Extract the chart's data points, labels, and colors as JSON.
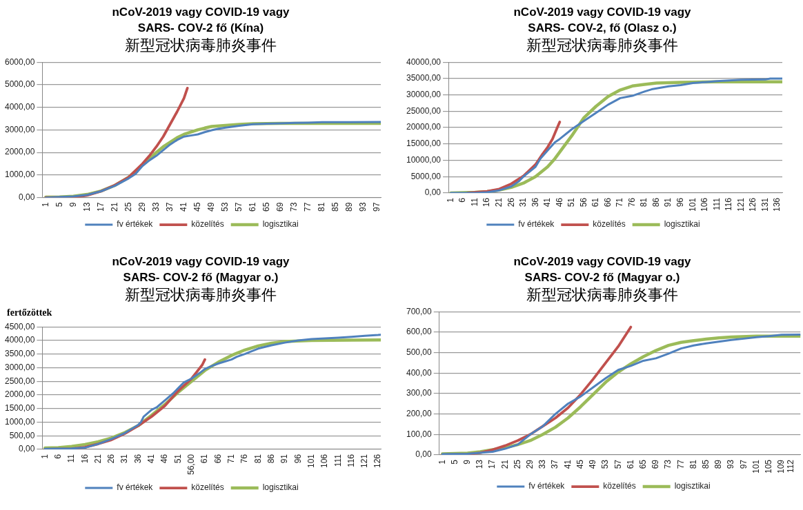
{
  "chart_data": [
    {
      "type": "line",
      "title": "nCoV-2019  vagy COVID-19 vagy\nSARS- COV-2 fő (Kína)",
      "subtitle": "新型冠状病毒肺炎事件",
      "xlim": [
        0,
        98
      ],
      "xticks": [
        1,
        5,
        9,
        13,
        17,
        21,
        25,
        29,
        33,
        37,
        41,
        45,
        49,
        53,
        57,
        61,
        65,
        69,
        73,
        77,
        81,
        85,
        89,
        93,
        97
      ],
      "ylim": [
        0,
        6000
      ],
      "yticks": [
        {
          "value": 0,
          "label": "0,00"
        },
        {
          "value": 1000,
          "label": "1000,00"
        },
        {
          "value": 2000,
          "label": "2000,00"
        },
        {
          "value": 3000,
          "label": "3000,00"
        },
        {
          "value": 4000,
          "label": "4000,00"
        },
        {
          "value": 5000,
          "label": "5000,00"
        },
        {
          "value": 6000,
          "label": "6000,00"
        }
      ],
      "grid": "y",
      "legend": "bottom",
      "marker": "none",
      "line_style": "solid",
      "series": [
        {
          "name": "fv értékek",
          "color": "#4f81bd",
          "x": [
            1,
            9,
            13,
            17,
            21,
            25,
            27,
            29,
            31,
            33,
            35,
            37,
            39,
            41,
            43,
            45,
            47,
            49,
            51,
            53,
            57,
            61,
            65,
            69,
            73,
            77,
            81,
            89,
            98
          ],
          "values": [
            0,
            50,
            120,
            280,
            520,
            850,
            1050,
            1400,
            1650,
            1850,
            2100,
            2350,
            2550,
            2700,
            2750,
            2800,
            2900,
            2980,
            3050,
            3100,
            3180,
            3250,
            3270,
            3290,
            3310,
            3320,
            3340,
            3340,
            3350
          ]
        },
        {
          "name": "közelítés",
          "color": "#c0504d",
          "x": [
            1,
            9,
            13,
            17,
            21,
            25,
            29,
            31,
            33,
            35,
            37,
            39,
            41,
            42
          ],
          "values": [
            0,
            10,
            100,
            280,
            550,
            900,
            1500,
            1850,
            2250,
            2700,
            3250,
            3800,
            4400,
            4850
          ]
        },
        {
          "name": "logisztikai",
          "color": "#9bbb59",
          "x": [
            1,
            5,
            9,
            13,
            17,
            21,
            25,
            29,
            31,
            33,
            35,
            37,
            39,
            41,
            43,
            45,
            47,
            49,
            53,
            57,
            61,
            69,
            98
          ],
          "values": [
            20,
            30,
            60,
            140,
            290,
            540,
            900,
            1450,
            1700,
            2000,
            2250,
            2450,
            2650,
            2800,
            2900,
            3000,
            3080,
            3150,
            3200,
            3240,
            3270,
            3290,
            3290
          ]
        }
      ]
    },
    {
      "type": "line",
      "title": "nCoV-2019  vagy COVID-19 vagy\nSARS- COV-2, fő (Olasz o.)",
      "subtitle": "新型冠状病毒肺炎事件",
      "xlim": [
        0,
        138
      ],
      "xticks": [
        1,
        6,
        11,
        16,
        21,
        26,
        31,
        36,
        41,
        46,
        51,
        56,
        61,
        66,
        71,
        76,
        81,
        86,
        91,
        96,
        101,
        106,
        111,
        116,
        121,
        126,
        131,
        136
      ],
      "ylim": [
        0,
        40000
      ],
      "yticks": [
        {
          "value": 0,
          "label": "0,00"
        },
        {
          "value": 5000,
          "label": "5000,00"
        },
        {
          "value": 10000,
          "label": "10000,00"
        },
        {
          "value": 15000,
          "label": "15000,00"
        },
        {
          "value": 20000,
          "label": "20000,00"
        },
        {
          "value": 25000,
          "label": "25000,00"
        },
        {
          "value": 30000,
          "label": "30000,00"
        },
        {
          "value": 35000,
          "label": "35000,00"
        },
        {
          "value": 40000,
          "label": "40000,00"
        }
      ],
      "grid": "y",
      "legend": "bottom",
      "marker": "none",
      "line_style": "solid",
      "series": [
        {
          "name": "fv értékek",
          "color": "#4f81bd",
          "x": [
            1,
            11,
            16,
            21,
            26,
            29,
            31,
            36,
            38,
            41,
            44,
            46,
            51,
            56,
            61,
            66,
            71,
            76,
            81,
            84,
            91,
            96,
            101,
            106,
            111,
            121,
            131,
            133,
            138
          ],
          "values": [
            0,
            0,
            200,
            800,
            2000,
            3500,
            5000,
            8000,
            10500,
            13000,
            15500,
            16500,
            19500,
            22000,
            24500,
            27000,
            29000,
            29700,
            31000,
            31700,
            32600,
            33000,
            33600,
            33900,
            34200,
            34600,
            34700,
            35000,
            35000
          ]
        },
        {
          "name": "közelítés",
          "color": "#c0504d",
          "x": [
            8,
            16,
            21,
            26,
            31,
            36,
            39,
            41,
            43,
            45,
            46
          ],
          "values": [
            0,
            500,
            1200,
            2800,
            5200,
            8700,
            12000,
            14000,
            16500,
            20000,
            21700
          ]
        },
        {
          "name": "logisztikai",
          "color": "#9bbb59",
          "x": [
            1,
            11,
            16,
            21,
            26,
            31,
            36,
            41,
            44,
            46,
            51,
            56,
            61,
            66,
            71,
            76,
            81,
            86,
            96,
            110,
            138
          ],
          "values": [
            0,
            200,
            400,
            900,
            1700,
            3000,
            5000,
            8000,
            10500,
            12500,
            17500,
            23000,
            26500,
            29500,
            31500,
            32700,
            33200,
            33600,
            33800,
            34000,
            34000
          ]
        }
      ]
    },
    {
      "type": "line",
      "title": "nCoV-2019  vagy COVID-19 vagy\nSARS- COV-2 fő (Magyar o.)",
      "subtitle": "新型冠状病毒肺炎事件",
      "ylabel": "fertőzöttek",
      "xlim": [
        0,
        127
      ],
      "xticks": [
        1,
        6,
        11,
        16,
        21,
        26,
        31,
        36,
        41,
        46,
        51,
        {
          "value": 56,
          "label": "56,00"
        },
        61,
        66,
        71,
        76,
        81,
        86,
        91,
        96,
        101,
        106,
        111,
        116,
        121,
        126
      ],
      "ylim": [
        0,
        4500
      ],
      "yticks": [
        {
          "value": 0,
          "label": "0,00"
        },
        {
          "value": 500,
          "label": "500,00"
        },
        {
          "value": 1000,
          "label": "1000,00"
        },
        {
          "value": 1500,
          "label": "1500,00"
        },
        {
          "value": 2000,
          "label": "2000,00"
        },
        {
          "value": 2500,
          "label": "2500,00"
        },
        {
          "value": 3000,
          "label": "3000,00"
        },
        {
          "value": 3500,
          "label": "3500,00"
        },
        {
          "value": 4000,
          "label": "4000,00"
        },
        {
          "value": 4500,
          "label": "4500,00"
        }
      ],
      "grid": "y",
      "legend": "bottom",
      "marker": "none",
      "line_style": "solid",
      "series": [
        {
          "name": "fv értékek",
          "color": "#4f81bd",
          "x": [
            1,
            11,
            16,
            21,
            26,
            31,
            36,
            37,
            38,
            41,
            43,
            46,
            49,
            51,
            53,
            56,
            59,
            61,
            64,
            66,
            71,
            73,
            76,
            81,
            86,
            91,
            96,
            101,
            111,
            116,
            121,
            126,
            127
          ],
          "values": [
            20,
            30,
            60,
            200,
            380,
            600,
            900,
            1000,
            1200,
            1450,
            1550,
            1800,
            2050,
            2250,
            2450,
            2600,
            2800,
            2950,
            3080,
            3150,
            3300,
            3400,
            3500,
            3700,
            3820,
            3920,
            4000,
            4050,
            4100,
            4130,
            4170,
            4200,
            4210
          ]
        },
        {
          "name": "közelítés",
          "color": "#c0504d",
          "x": [
            1,
            11,
            16,
            21,
            26,
            31,
            36,
            41,
            46,
            51,
            56,
            58,
            60,
            61
          ],
          "values": [
            0,
            20,
            80,
            200,
            350,
            580,
            870,
            1200,
            1600,
            2150,
            2600,
            2850,
            3100,
            3300
          ]
        },
        {
          "name": "logisztikai",
          "color": "#9bbb59",
          "x": [
            1,
            6,
            11,
            16,
            21,
            26,
            31,
            36,
            41,
            46,
            51,
            56,
            61,
            66,
            71,
            76,
            81,
            86,
            91,
            101,
            127
          ],
          "values": [
            50,
            60,
            110,
            180,
            280,
            420,
            620,
            870,
            1250,
            1650,
            2100,
            2500,
            2900,
            3200,
            3450,
            3650,
            3800,
            3900,
            3960,
            4000,
            4020
          ]
        }
      ]
    },
    {
      "type": "line",
      "title": "nCoV-2019  vagy COVID-19 vagy\nSARS- COV-2 fő (Magyar o.)",
      "subtitle": "新型冠状病毒肺炎事件",
      "xlim": [
        0,
        115
      ],
      "xticks": [
        1,
        5,
        9,
        13,
        17,
        21,
        25,
        29,
        33,
        37,
        41,
        45,
        49,
        53,
        57,
        61,
        65,
        69,
        73,
        77,
        81,
        85,
        89,
        93,
        97,
        101,
        105,
        109,
        112
      ],
      "ylim": [
        0,
        700
      ],
      "yticks": [
        {
          "value": 0,
          "label": "0,00"
        },
        {
          "value": 100,
          "label": "100,00"
        },
        {
          "value": 200,
          "label": "200,00"
        },
        {
          "value": 300,
          "label": "300,00"
        },
        {
          "value": 400,
          "label": "400,00"
        },
        {
          "value": 500,
          "label": "500,00"
        },
        {
          "value": 600,
          "label": "600,00"
        },
        {
          "value": 700,
          "label": "700,00"
        }
      ],
      "grid": "y",
      "legend": "bottom",
      "marker": "none",
      "line_style": "solid",
      "series": [
        {
          "name": "fv értékek",
          "color": "#4f81bd",
          "x": [
            1,
            9,
            13,
            17,
            21,
            25,
            29,
            33,
            37,
            41,
            45,
            49,
            53,
            57,
            61,
            65,
            69,
            73,
            77,
            81,
            85,
            89,
            93,
            97,
            101,
            105,
            109,
            115
          ],
          "values": [
            3,
            5,
            10,
            15,
            30,
            50,
            100,
            140,
            200,
            250,
            285,
            330,
            375,
            415,
            435,
            460,
            472,
            495,
            520,
            535,
            545,
            553,
            562,
            568,
            575,
            580,
            587,
            588
          ]
        },
        {
          "name": "közelítés",
          "color": "#c0504d",
          "x": [
            1,
            9,
            13,
            17,
            21,
            25,
            29,
            33,
            37,
            41,
            45,
            49,
            53,
            57,
            61
          ],
          "values": [
            0,
            3,
            10,
            25,
            45,
            70,
            100,
            140,
            180,
            230,
            295,
            370,
            450,
            530,
            625
          ]
        },
        {
          "name": "logisztikai",
          "color": "#9bbb59",
          "x": [
            1,
            9,
            13,
            17,
            21,
            25,
            29,
            33,
            37,
            41,
            45,
            49,
            53,
            57,
            61,
            65,
            69,
            73,
            77,
            81,
            85,
            89,
            93,
            101,
            115
          ],
          "values": [
            5,
            8,
            15,
            25,
            35,
            50,
            70,
            100,
            135,
            180,
            235,
            295,
            355,
            405,
            445,
            480,
            510,
            535,
            550,
            558,
            566,
            572,
            576,
            580,
            580
          ]
        }
      ]
    }
  ]
}
